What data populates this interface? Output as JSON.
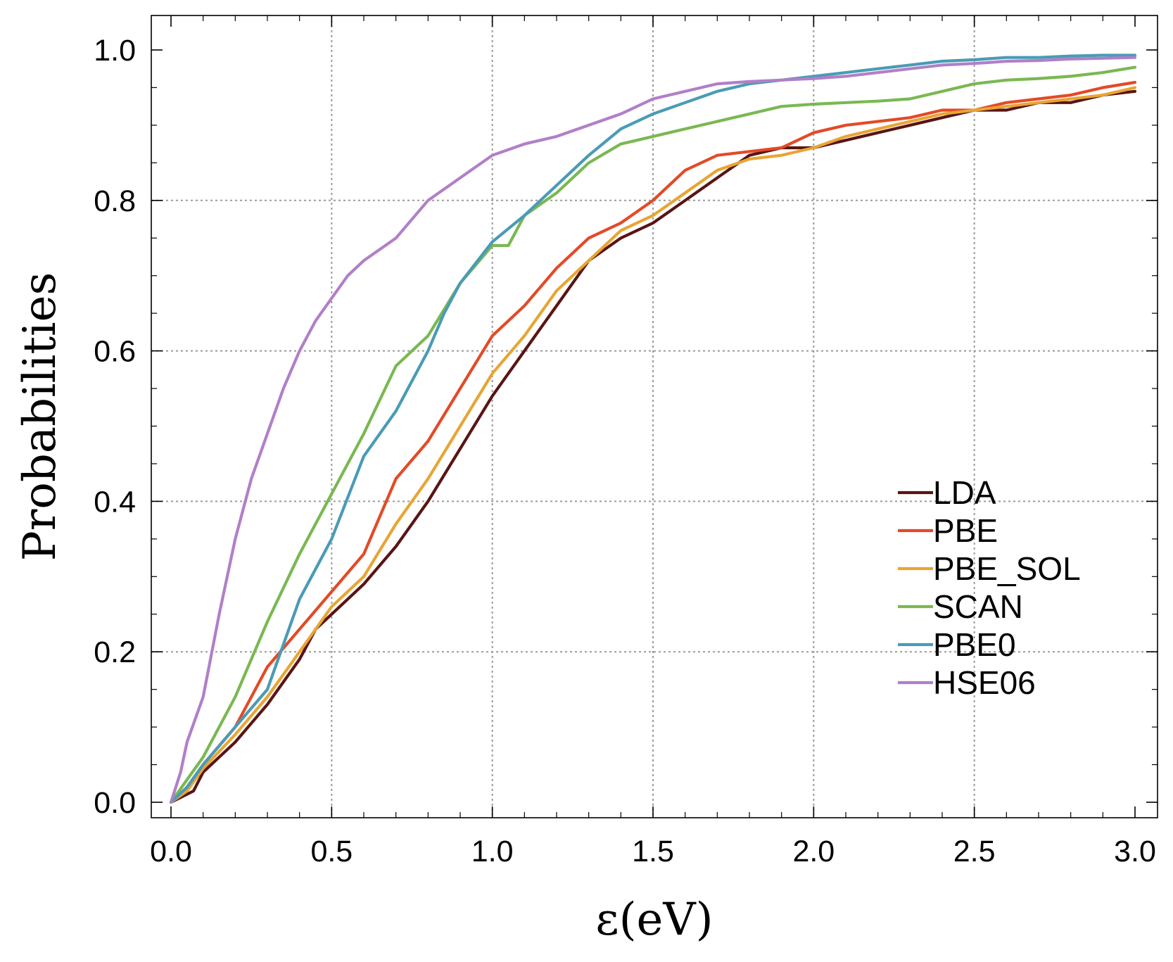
{
  "chart_data": {
    "type": "line",
    "title": "",
    "xlabel": "ε(eV)",
    "ylabel": "Probabilities",
    "xlim": [
      0.0,
      3.0
    ],
    "ylim": [
      0.0,
      1.0
    ],
    "xticks": [
      0.0,
      0.5,
      1.0,
      1.5,
      2.0,
      2.5,
      3.0
    ],
    "xtick_labels": [
      "0.0",
      "0.5",
      "1.0",
      "1.5",
      "2.0",
      "2.5",
      "3.0"
    ],
    "yticks": [
      0.0,
      0.2,
      0.4,
      0.6,
      0.8,
      1.0
    ],
    "ytick_labels": [
      "0.0",
      "0.2",
      "0.4",
      "0.6",
      "0.8",
      "1.0"
    ],
    "grid": true,
    "legend_position": "center-right",
    "series": [
      {
        "name": "LDA",
        "color": "#5a1414",
        "points": [
          [
            0,
            0
          ],
          [
            0.07,
            0.015
          ],
          [
            0.1,
            0.04
          ],
          [
            0.2,
            0.08
          ],
          [
            0.3,
            0.13
          ],
          [
            0.4,
            0.19
          ],
          [
            0.45,
            0.23
          ],
          [
            0.5,
            0.25
          ],
          [
            0.6,
            0.29
          ],
          [
            0.7,
            0.34
          ],
          [
            0.8,
            0.4
          ],
          [
            0.9,
            0.47
          ],
          [
            1.0,
            0.54
          ],
          [
            1.1,
            0.6
          ],
          [
            1.2,
            0.66
          ],
          [
            1.3,
            0.72
          ],
          [
            1.4,
            0.75
          ],
          [
            1.5,
            0.77
          ],
          [
            1.6,
            0.8
          ],
          [
            1.7,
            0.83
          ],
          [
            1.8,
            0.86
          ],
          [
            1.9,
            0.87
          ],
          [
            2.0,
            0.87
          ],
          [
            2.1,
            0.88
          ],
          [
            2.2,
            0.89
          ],
          [
            2.3,
            0.9
          ],
          [
            2.4,
            0.91
          ],
          [
            2.5,
            0.92
          ],
          [
            2.6,
            0.92
          ],
          [
            2.7,
            0.93
          ],
          [
            2.8,
            0.93
          ],
          [
            2.9,
            0.94
          ],
          [
            3.0,
            0.945
          ]
        ]
      },
      {
        "name": "PBE",
        "color": "#e34a27",
        "points": [
          [
            0,
            0
          ],
          [
            0.05,
            0.02
          ],
          [
            0.1,
            0.05
          ],
          [
            0.2,
            0.1
          ],
          [
            0.3,
            0.18
          ],
          [
            0.4,
            0.23
          ],
          [
            0.5,
            0.28
          ],
          [
            0.6,
            0.33
          ],
          [
            0.7,
            0.43
          ],
          [
            0.8,
            0.48
          ],
          [
            0.9,
            0.55
          ],
          [
            1.0,
            0.62
          ],
          [
            1.1,
            0.66
          ],
          [
            1.2,
            0.71
          ],
          [
            1.3,
            0.75
          ],
          [
            1.4,
            0.77
          ],
          [
            1.5,
            0.8
          ],
          [
            1.6,
            0.84
          ],
          [
            1.7,
            0.86
          ],
          [
            1.8,
            0.865
          ],
          [
            1.9,
            0.87
          ],
          [
            2.0,
            0.89
          ],
          [
            2.1,
            0.9
          ],
          [
            2.2,
            0.905
          ],
          [
            2.3,
            0.91
          ],
          [
            2.4,
            0.92
          ],
          [
            2.5,
            0.92
          ],
          [
            2.6,
            0.93
          ],
          [
            2.7,
            0.935
          ],
          [
            2.8,
            0.94
          ],
          [
            2.9,
            0.95
          ],
          [
            3.0,
            0.957
          ]
        ]
      },
      {
        "name": "PBE_SOL",
        "color": "#e8a534",
        "points": [
          [
            0,
            0
          ],
          [
            0.05,
            0.015
          ],
          [
            0.1,
            0.045
          ],
          [
            0.2,
            0.09
          ],
          [
            0.3,
            0.14
          ],
          [
            0.4,
            0.2
          ],
          [
            0.5,
            0.26
          ],
          [
            0.6,
            0.3
          ],
          [
            0.7,
            0.37
          ],
          [
            0.8,
            0.43
          ],
          [
            0.9,
            0.5
          ],
          [
            1.0,
            0.57
          ],
          [
            1.1,
            0.62
          ],
          [
            1.2,
            0.68
          ],
          [
            1.3,
            0.72
          ],
          [
            1.4,
            0.76
          ],
          [
            1.5,
            0.78
          ],
          [
            1.6,
            0.81
          ],
          [
            1.7,
            0.84
          ],
          [
            1.8,
            0.855
          ],
          [
            1.9,
            0.86
          ],
          [
            2.0,
            0.87
          ],
          [
            2.1,
            0.885
          ],
          [
            2.2,
            0.895
          ],
          [
            2.3,
            0.905
          ],
          [
            2.4,
            0.915
          ],
          [
            2.5,
            0.92
          ],
          [
            2.6,
            0.925
          ],
          [
            2.7,
            0.93
          ],
          [
            2.8,
            0.935
          ],
          [
            2.9,
            0.94
          ],
          [
            3.0,
            0.95
          ]
        ]
      },
      {
        "name": "SCAN",
        "color": "#7ab852",
        "points": [
          [
            0,
            0
          ],
          [
            0.05,
            0.03
          ],
          [
            0.1,
            0.06
          ],
          [
            0.2,
            0.14
          ],
          [
            0.3,
            0.24
          ],
          [
            0.4,
            0.33
          ],
          [
            0.5,
            0.41
          ],
          [
            0.6,
            0.49
          ],
          [
            0.7,
            0.58
          ],
          [
            0.8,
            0.62
          ],
          [
            0.9,
            0.69
          ],
          [
            1.0,
            0.74
          ],
          [
            1.05,
            0.74
          ],
          [
            1.1,
            0.78
          ],
          [
            1.2,
            0.81
          ],
          [
            1.3,
            0.85
          ],
          [
            1.4,
            0.875
          ],
          [
            1.5,
            0.885
          ],
          [
            1.6,
            0.895
          ],
          [
            1.7,
            0.905
          ],
          [
            1.8,
            0.915
          ],
          [
            1.9,
            0.925
          ],
          [
            2.0,
            0.928
          ],
          [
            2.1,
            0.93
          ],
          [
            2.2,
            0.932
          ],
          [
            2.3,
            0.935
          ],
          [
            2.4,
            0.945
          ],
          [
            2.5,
            0.955
          ],
          [
            2.6,
            0.96
          ],
          [
            2.7,
            0.962
          ],
          [
            2.8,
            0.965
          ],
          [
            2.9,
            0.97
          ],
          [
            3.0,
            0.977
          ]
        ]
      },
      {
        "name": "PBE0",
        "color": "#4a9bb5",
        "points": [
          [
            0,
            0
          ],
          [
            0.05,
            0.02
          ],
          [
            0.1,
            0.05
          ],
          [
            0.2,
            0.1
          ],
          [
            0.3,
            0.15
          ],
          [
            0.4,
            0.27
          ],
          [
            0.5,
            0.35
          ],
          [
            0.6,
            0.46
          ],
          [
            0.7,
            0.52
          ],
          [
            0.8,
            0.6
          ],
          [
            0.85,
            0.65
          ],
          [
            0.9,
            0.69
          ],
          [
            1.0,
            0.745
          ],
          [
            1.1,
            0.78
          ],
          [
            1.2,
            0.82
          ],
          [
            1.3,
            0.86
          ],
          [
            1.4,
            0.895
          ],
          [
            1.5,
            0.915
          ],
          [
            1.6,
            0.93
          ],
          [
            1.7,
            0.945
          ],
          [
            1.8,
            0.955
          ],
          [
            1.9,
            0.96
          ],
          [
            2.0,
            0.965
          ],
          [
            2.1,
            0.97
          ],
          [
            2.2,
            0.975
          ],
          [
            2.3,
            0.98
          ],
          [
            2.4,
            0.985
          ],
          [
            2.5,
            0.987
          ],
          [
            2.6,
            0.99
          ],
          [
            2.7,
            0.99
          ],
          [
            2.8,
            0.992
          ],
          [
            2.9,
            0.993
          ],
          [
            3.0,
            0.993
          ]
        ]
      },
      {
        "name": "HSE06",
        "color": "#b17fc8",
        "points": [
          [
            0,
            0
          ],
          [
            0.03,
            0.04
          ],
          [
            0.05,
            0.08
          ],
          [
            0.1,
            0.14
          ],
          [
            0.15,
            0.25
          ],
          [
            0.2,
            0.35
          ],
          [
            0.25,
            0.43
          ],
          [
            0.3,
            0.49
          ],
          [
            0.35,
            0.55
          ],
          [
            0.4,
            0.6
          ],
          [
            0.45,
            0.64
          ],
          [
            0.5,
            0.67
          ],
          [
            0.55,
            0.7
          ],
          [
            0.6,
            0.72
          ],
          [
            0.7,
            0.75
          ],
          [
            0.8,
            0.8
          ],
          [
            0.9,
            0.83
          ],
          [
            1.0,
            0.86
          ],
          [
            1.1,
            0.875
          ],
          [
            1.2,
            0.885
          ],
          [
            1.3,
            0.9
          ],
          [
            1.4,
            0.915
          ],
          [
            1.5,
            0.935
          ],
          [
            1.6,
            0.945
          ],
          [
            1.7,
            0.955
          ],
          [
            1.8,
            0.958
          ],
          [
            1.9,
            0.96
          ],
          [
            2.0,
            0.962
          ],
          [
            2.1,
            0.965
          ],
          [
            2.2,
            0.97
          ],
          [
            2.3,
            0.975
          ],
          [
            2.4,
            0.98
          ],
          [
            2.5,
            0.982
          ],
          [
            2.6,
            0.985
          ],
          [
            2.7,
            0.986
          ],
          [
            2.8,
            0.988
          ],
          [
            2.9,
            0.989
          ],
          [
            3.0,
            0.99
          ]
        ]
      }
    ]
  }
}
